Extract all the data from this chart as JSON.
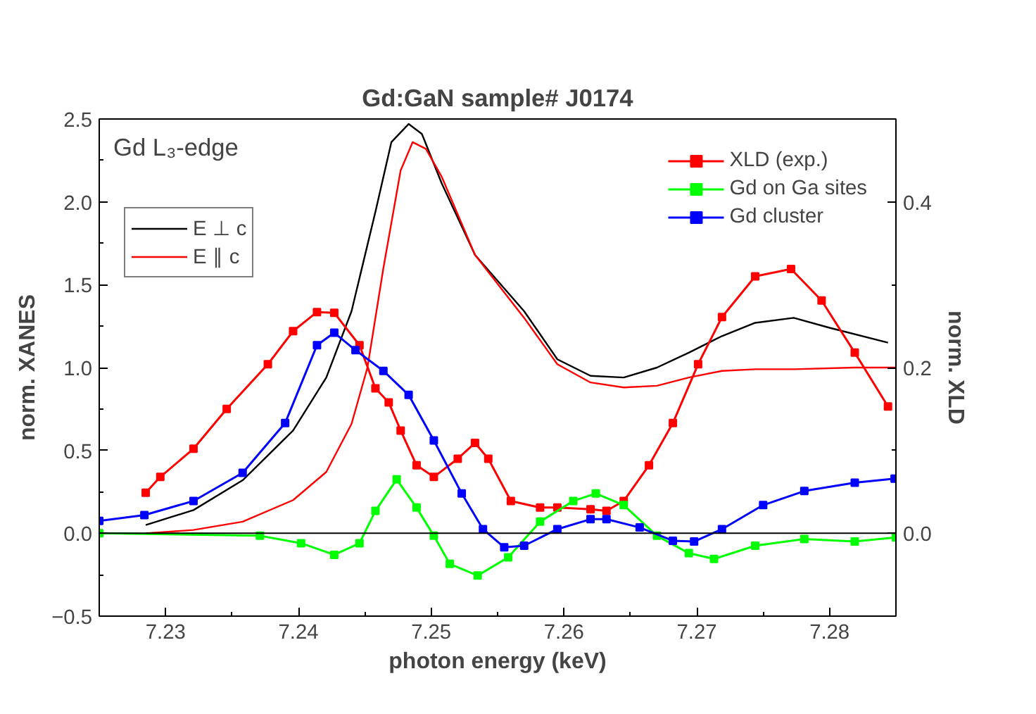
{
  "chart_data": {
    "type": "line",
    "title": "Gd:GaN sample# J0174",
    "xlabel": "photon energy (keV)",
    "ylabel": "norm. XANES",
    "y2label": "norm. XLD",
    "annotations": [
      "Gd L₃-edge"
    ],
    "xlim": [
      7.225,
      7.285
    ],
    "xticks": [
      {
        "value": 7.23,
        "label": "7.23"
      },
      {
        "value": 7.24,
        "label": "7.24"
      },
      {
        "value": 7.25,
        "label": "7.25"
      },
      {
        "value": 7.26,
        "label": "7.26"
      },
      {
        "value": 7.27,
        "label": "7.27"
      },
      {
        "value": 7.28,
        "label": "7.28"
      }
    ],
    "ylim": [
      -0.5,
      2.5
    ],
    "yticks": [
      -0.5,
      {
        "value": 0,
        "label": "0.0"
      },
      0.5,
      {
        "value": 1,
        "label": "1.0"
      },
      1.5,
      {
        "value": 2,
        "label": "2.0"
      },
      2.5
    ],
    "y2lim": [
      -0.1,
      0.5
    ],
    "y2ticks": [
      {
        "value": 0,
        "label": "0.0"
      },
      0.2,
      0.4
    ],
    "legend": "top",
    "grid": false,
    "ref_lines": [
      {
        "axis": "y",
        "value": 0,
        "color": "#000000"
      }
    ],
    "series": [
      {
        "name": "E ⊥ c",
        "color": "#000000",
        "x": [
          7.2285,
          7.2321,
          7.2358,
          7.2396,
          7.2421,
          7.244,
          7.2458,
          7.247,
          7.2483,
          7.2493,
          7.2508,
          7.2533,
          7.257,
          7.2595,
          7.262,
          7.2645,
          7.267,
          7.2694,
          7.2719,
          7.2744,
          7.2773,
          7.28,
          7.2844
        ],
        "values": [
          0.05,
          0.14,
          0.32,
          0.62,
          0.94,
          1.34,
          1.94,
          2.36,
          2.47,
          2.41,
          2.11,
          1.68,
          1.34,
          1.05,
          0.95,
          0.94,
          1.0,
          1.09,
          1.19,
          1.27,
          1.3,
          1.24,
          1.15
        ]
      },
      {
        "name": "E ∥ c",
        "color": "#ff0000",
        "x": [
          7.2285,
          7.2321,
          7.2358,
          7.2396,
          7.2421,
          7.244,
          7.2452,
          7.2464,
          7.2477,
          7.2486,
          7.2496,
          7.2508,
          7.2533,
          7.257,
          7.2595,
          7.262,
          7.2645,
          7.267,
          7.2694,
          7.2719,
          7.2744,
          7.2773,
          7.2819,
          7.285
        ],
        "values": [
          0.0,
          0.02,
          0.07,
          0.2,
          0.37,
          0.66,
          1.0,
          1.6,
          2.19,
          2.36,
          2.32,
          2.15,
          1.68,
          1.3,
          1.02,
          0.91,
          0.88,
          0.89,
          0.94,
          0.98,
          0.99,
          0.99,
          1.0,
          1.0
        ]
      },
      {
        "name": "XLD (exp.)",
        "color": "#ff0000",
        "axis": "y2",
        "marker": "square",
        "x": [
          7.2285,
          7.2296,
          7.2321,
          7.2346,
          7.2377,
          7.2396,
          7.2414,
          7.2427,
          7.2446,
          7.2458,
          7.2468,
          7.2477,
          7.2489,
          7.2502,
          7.252,
          7.2533,
          7.2543,
          7.256,
          7.2582,
          7.2595,
          7.262,
          7.2632,
          7.2645,
          7.2664,
          7.2682,
          7.2701,
          7.2719,
          7.2744,
          7.2771,
          7.2794,
          7.2819,
          7.2844
        ],
        "values": [
          0.049,
          0.068,
          0.102,
          0.15,
          0.204,
          0.244,
          0.267,
          0.266,
          0.227,
          0.175,
          0.158,
          0.124,
          0.082,
          0.068,
          0.09,
          0.109,
          0.09,
          0.039,
          0.031,
          0.031,
          0.029,
          0.027,
          0.039,
          0.082,
          0.133,
          0.204,
          0.261,
          0.31,
          0.319,
          0.281,
          0.218,
          0.153
        ]
      },
      {
        "name": "Gd on Ga sites",
        "color": "#00ff00",
        "axis": "y2",
        "marker": "square",
        "x": [
          7.225,
          7.2371,
          7.2402,
          7.2427,
          7.2446,
          7.2458,
          7.2474,
          7.2489,
          7.2502,
          7.2514,
          7.2535,
          7.2558,
          7.2582,
          7.2607,
          7.2624,
          7.2645,
          7.267,
          7.2694,
          7.2713,
          7.2744,
          7.2781,
          7.2819,
          7.285
        ],
        "values": [
          0.0,
          -0.003,
          -0.012,
          -0.026,
          -0.012,
          0.027,
          0.065,
          0.031,
          -0.003,
          -0.037,
          -0.051,
          -0.029,
          0.014,
          0.039,
          0.048,
          0.034,
          -0.003,
          -0.024,
          -0.031,
          -0.015,
          -0.007,
          -0.01,
          -0.005
        ]
      },
      {
        "name": "Gd cluster",
        "color": "#0000ff",
        "axis": "y2",
        "marker": "square",
        "x": [
          7.225,
          7.2284,
          7.2321,
          7.2358,
          7.239,
          7.2414,
          7.2427,
          7.2443,
          7.2464,
          7.2483,
          7.2502,
          7.2523,
          7.2539,
          7.2555,
          7.257,
          7.2595,
          7.262,
          7.2632,
          7.2657,
          7.2682,
          7.2698,
          7.2719,
          7.275,
          7.2781,
          7.2819,
          7.2849
        ],
        "values": [
          0.015,
          0.022,
          0.039,
          0.073,
          0.133,
          0.227,
          0.242,
          0.221,
          0.196,
          0.167,
          0.112,
          0.048,
          0.005,
          -0.017,
          -0.015,
          0.005,
          0.017,
          0.017,
          0.007,
          -0.009,
          -0.01,
          0.005,
          0.034,
          0.051,
          0.061,
          0.066
        ]
      }
    ]
  }
}
